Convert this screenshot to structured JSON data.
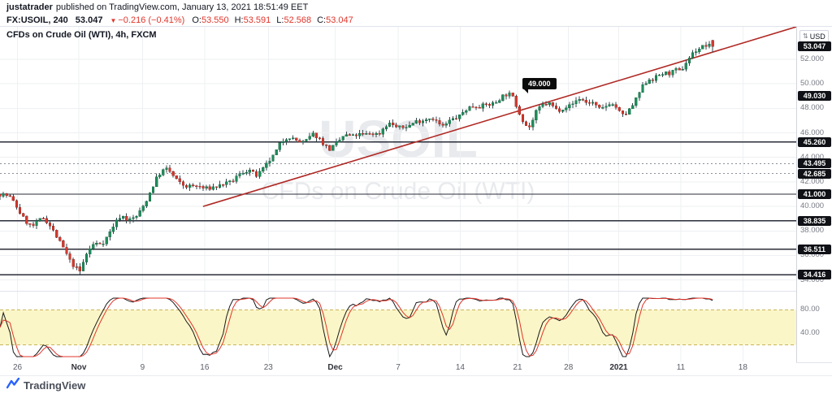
{
  "page": {
    "header": {
      "author": "justatrader",
      "published_text": "published on TradingView.com, January 13, 2021 18:51:49 EET"
    },
    "symbol_bar": {
      "symbol": "FX:USOIL, 240",
      "last": "53.047",
      "direction_glyph": "▼",
      "change": "−0.216 (−0.41%)",
      "ohlc": [
        {
          "label": "O:",
          "value": "53.550"
        },
        {
          "label": "H:",
          "value": "53.591"
        },
        {
          "label": "L:",
          "value": "52.568"
        },
        {
          "label": "C:",
          "value": "53.047"
        }
      ]
    },
    "footer": {
      "brand": "TradingView"
    }
  },
  "chart": {
    "legend": "CFDs on Crude Oil (WTI), 4h, FXCM",
    "watermark": [
      "USOIL",
      "CFDs on Crude Oil (WTI)"
    ],
    "currency_label": "USD",
    "callout": {
      "text": "49.000",
      "t": 0.648,
      "price": 49.0
    }
  },
  "chart_data": {
    "type": "candlestick",
    "title": "CFDs on Crude Oil (WTI), 4h, FXCM",
    "symbol": "FX:USOIL",
    "interval": "240",
    "exchange": "FXCM",
    "current": {
      "open": 53.55,
      "high": 53.591,
      "low": 52.568,
      "close": 53.047,
      "change": -0.216,
      "change_pct": -0.41
    },
    "ylim": [
      33.25,
      54.65
    ],
    "price_ticks": [
      52,
      50,
      48,
      46,
      44,
      42,
      40,
      38,
      36,
      34
    ],
    "series_t_end": 0.895,
    "price_path": [
      [
        0.0,
        41.0
      ],
      [
        0.015,
        40.4
      ],
      [
        0.03,
        39.4
      ],
      [
        0.045,
        38.6
      ],
      [
        0.06,
        38.9
      ],
      [
        0.075,
        37.8
      ],
      [
        0.09,
        36.8
      ],
      [
        0.1,
        35.6
      ],
      [
        0.112,
        34.5
      ],
      [
        0.122,
        35.9
      ],
      [
        0.132,
        36.9
      ],
      [
        0.145,
        37.4
      ],
      [
        0.158,
        38.4
      ],
      [
        0.17,
        39.0
      ],
      [
        0.18,
        38.6
      ],
      [
        0.192,
        39.4
      ],
      [
        0.2,
        40.2
      ],
      [
        0.212,
        41.4
      ],
      [
        0.222,
        42.3
      ],
      [
        0.235,
        42.9
      ],
      [
        0.248,
        42.4
      ],
      [
        0.262,
        41.8
      ],
      [
        0.275,
        41.4
      ],
      [
        0.287,
        41.2
      ],
      [
        0.3,
        41.8
      ],
      [
        0.312,
        42.1
      ],
      [
        0.325,
        41.8
      ],
      [
        0.338,
        42.4
      ],
      [
        0.35,
        43.1
      ],
      [
        0.36,
        42.8
      ],
      [
        0.372,
        43.3
      ],
      [
        0.385,
        43.9
      ],
      [
        0.395,
        45.1
      ],
      [
        0.405,
        45.9
      ],
      [
        0.415,
        45.7
      ],
      [
        0.428,
        45.2
      ],
      [
        0.44,
        45.6
      ],
      [
        0.452,
        45.2
      ],
      [
        0.462,
        44.9
      ],
      [
        0.47,
        45.3
      ],
      [
        0.482,
        45.7
      ],
      [
        0.495,
        45.4
      ],
      [
        0.508,
        45.9
      ],
      [
        0.52,
        46.3
      ],
      [
        0.532,
        46.0
      ],
      [
        0.545,
        46.5
      ],
      [
        0.558,
        46.3
      ],
      [
        0.57,
        46.8
      ],
      [
        0.582,
        47.1
      ],
      [
        0.595,
        46.8
      ],
      [
        0.608,
        47.0
      ],
      [
        0.62,
        46.7
      ],
      [
        0.632,
        47.3
      ],
      [
        0.645,
        47.2
      ],
      [
        0.658,
        47.8
      ],
      [
        0.67,
        48.3
      ],
      [
        0.682,
        48.6
      ],
      [
        0.695,
        48.4
      ],
      [
        0.708,
        48.8
      ],
      [
        0.718,
        49.0
      ],
      [
        0.728,
        48.0
      ],
      [
        0.738,
        46.9
      ],
      [
        0.744,
        46.6
      ],
      [
        0.752,
        47.5
      ],
      [
        0.762,
        48.0
      ],
      [
        0.772,
        48.3
      ],
      [
        0.782,
        48.1
      ],
      [
        0.792,
        48.4
      ],
      [
        0.802,
        48.2
      ],
      [
        0.812,
        48.5
      ],
      [
        0.822,
        48.3
      ],
      [
        0.832,
        48.6
      ],
      [
        0.842,
        48.2
      ],
      [
        0.855,
        48.4
      ],
      [
        0.865,
        47.8
      ],
      [
        0.872,
        47.1
      ],
      [
        0.88,
        47.6
      ],
      [
        0.89,
        48.7
      ],
      [
        0.9,
        49.9
      ],
      [
        0.91,
        50.3
      ],
      [
        0.918,
        50.1
      ],
      [
        0.928,
        50.6
      ],
      [
        0.938,
        51.0
      ],
      [
        0.948,
        51.4
      ],
      [
        0.955,
        51.2
      ],
      [
        0.963,
        51.7
      ],
      [
        0.972,
        52.2
      ],
      [
        0.98,
        52.6
      ],
      [
        0.988,
        53.1
      ],
      [
        0.994,
        53.4
      ],
      [
        1.0,
        53.05
      ]
    ],
    "trendline": {
      "start": {
        "t": 0.255,
        "price": 40.0
      },
      "end": {
        "t": 1.0,
        "price": 54.65
      },
      "color": "#b02a25"
    },
    "levels": [
      {
        "price": 53.047,
        "label": "53.047",
        "line": "none",
        "kind": "last-price"
      },
      {
        "price": 49.03,
        "label": "49.030",
        "line": "none",
        "kind": "drawing"
      },
      {
        "price": 45.26,
        "label": "45.260",
        "line": "solid",
        "kind": "drawing"
      },
      {
        "price": 43.495,
        "label": "43.495",
        "line": "dashed",
        "kind": "drawing"
      },
      {
        "price": 42.685,
        "label": "42.685",
        "line": "dashed",
        "kind": "drawing"
      },
      {
        "price": 41.0,
        "label": "41.000",
        "line": "solid",
        "kind": "drawing"
      },
      {
        "price": 38.835,
        "label": "38.835",
        "line": "solid",
        "kind": "drawing"
      },
      {
        "price": 36.511,
        "label": "36.511",
        "line": "solid",
        "kind": "drawing"
      },
      {
        "price": 34.416,
        "label": "34.416",
        "line": "solid",
        "kind": "drawing"
      }
    ],
    "time_labels": [
      {
        "t": 0.022,
        "label": "26",
        "month": false
      },
      {
        "t": 0.099,
        "label": "Nov",
        "month": true
      },
      {
        "t": 0.179,
        "label": "9",
        "month": false
      },
      {
        "t": 0.257,
        "label": "16",
        "month": false
      },
      {
        "t": 0.337,
        "label": "23",
        "month": false
      },
      {
        "t": 0.421,
        "label": "Dec",
        "month": true
      },
      {
        "t": 0.5,
        "label": "7",
        "month": false
      },
      {
        "t": 0.578,
        "label": "14",
        "month": false
      },
      {
        "t": 0.65,
        "label": "21",
        "month": false
      },
      {
        "t": 0.714,
        "label": "28",
        "month": false
      },
      {
        "t": 0.777,
        "label": "2021",
        "month": true
      },
      {
        "t": 0.855,
        "label": "11",
        "month": false
      },
      {
        "t": 0.933,
        "label": "18",
        "month": false
      }
    ],
    "indicator": {
      "name": "Stochastic",
      "k_period": 14,
      "smooth": 3,
      "range": [
        0,
        100
      ],
      "bands": [
        80,
        20
      ],
      "axis_ticks": [
        {
          "value": 80,
          "label": "80.00"
        },
        {
          "value": 40,
          "label": "40.00"
        }
      ],
      "band_fill": "#fbf6c8",
      "band_edge": "#c9b458",
      "k_color": "#1a1a1a",
      "d_color": "#e0352b"
    },
    "colors": {
      "up": "#1e8c5a",
      "up_stroke": "#0f5c3a",
      "down": "#d3382e",
      "down_stroke": "#8f241d",
      "wick": "#37474f",
      "grid": "#eef0f2",
      "level_solid": "#2a2e39",
      "level_dashed": "#8c909a",
      "accent": "#2962ff"
    }
  }
}
